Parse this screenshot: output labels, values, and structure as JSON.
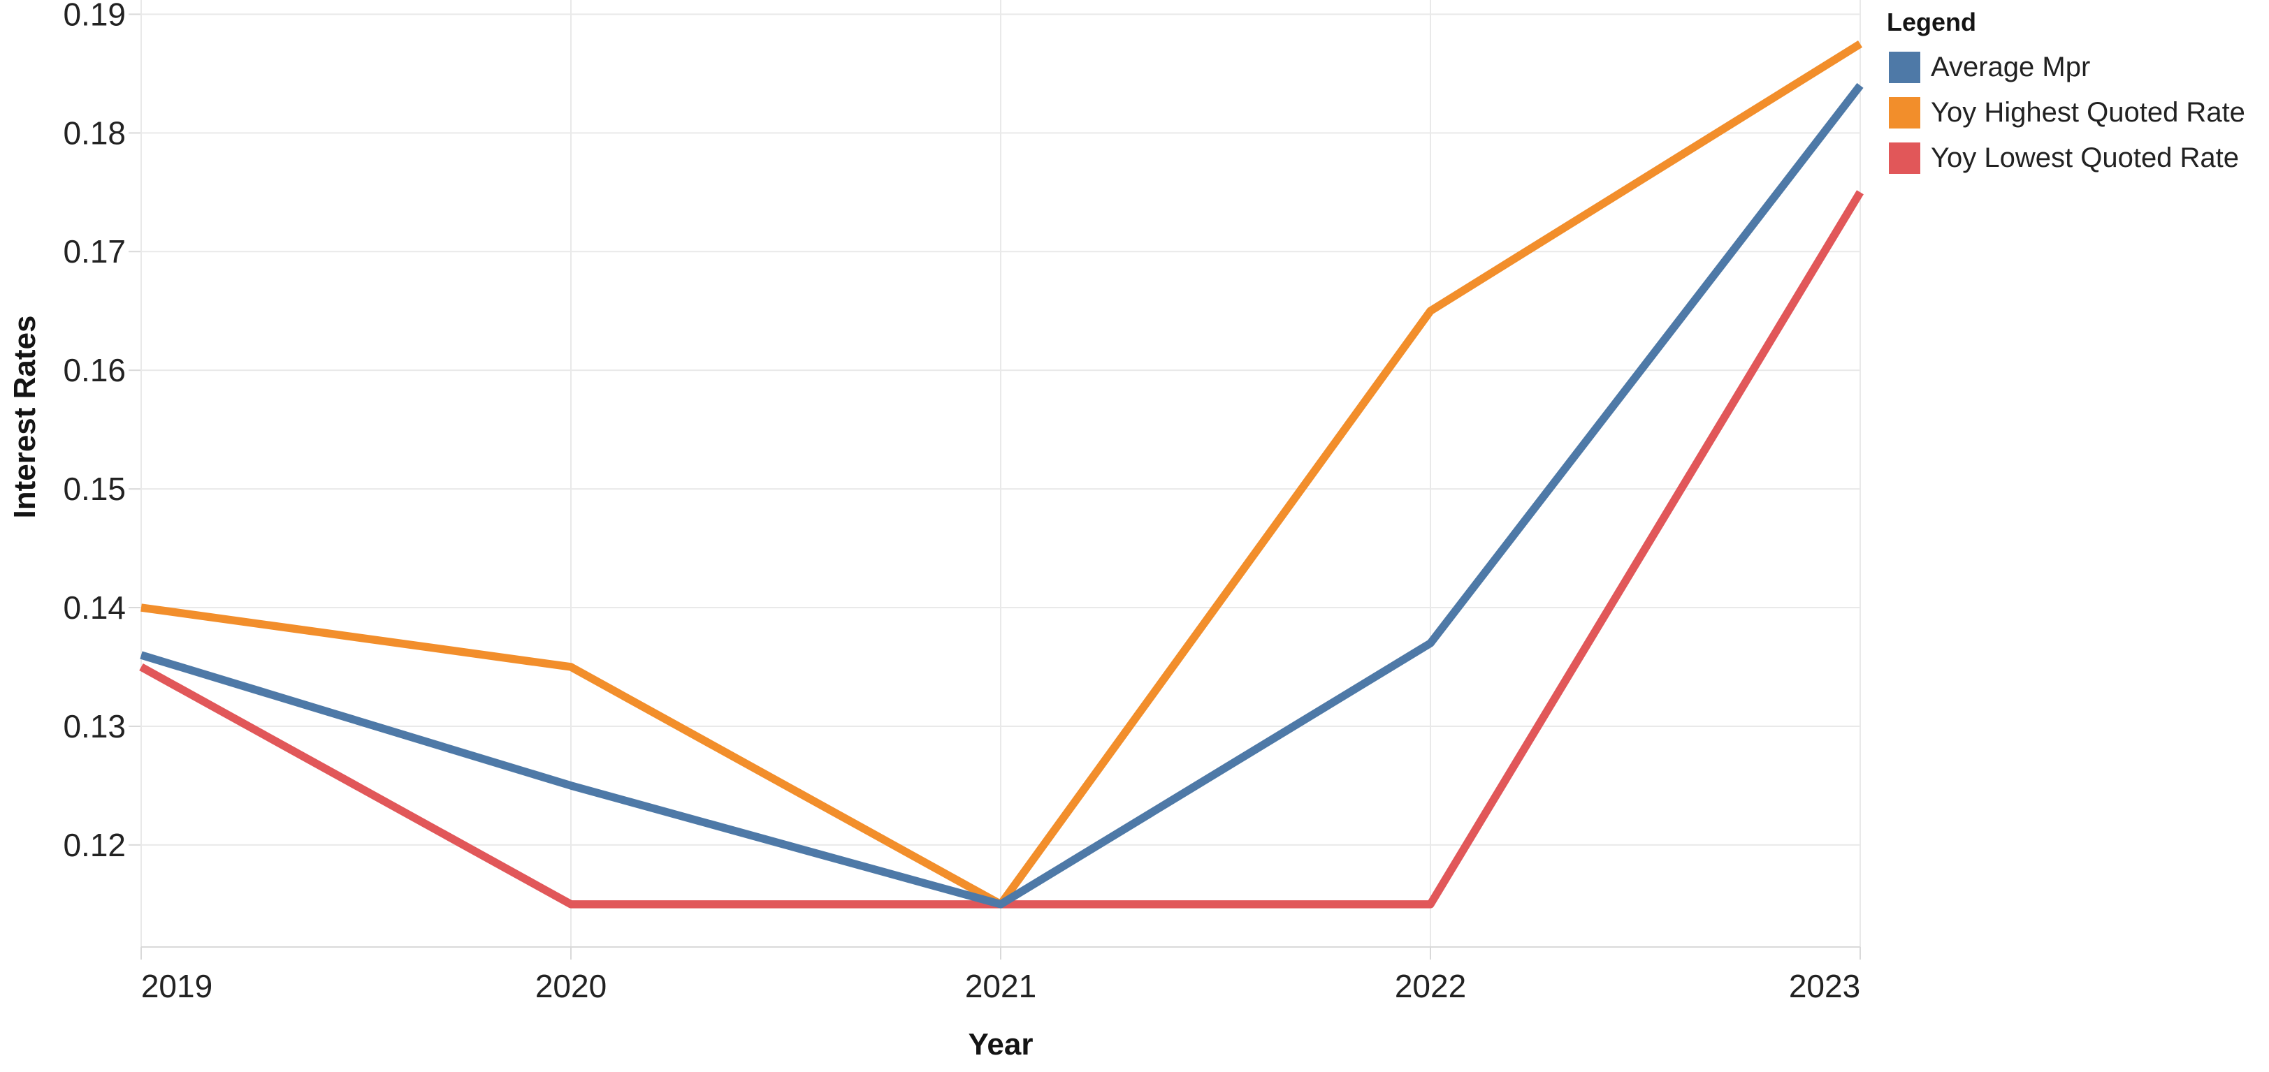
{
  "chart_data": {
    "type": "line",
    "xlabel": "Year",
    "ylabel": "Interest Rates",
    "legend_title": "Legend",
    "legend_position": "top-right",
    "grid": true,
    "categories": [
      "2019",
      "2020",
      "2021",
      "2022",
      "2023"
    ],
    "ytick_labels": [
      "0.12",
      "0.13",
      "0.14",
      "0.15",
      "0.16",
      "0.17",
      "0.18",
      "0.19"
    ],
    "ytick_values": [
      0.12,
      0.13,
      0.14,
      0.15,
      0.16,
      0.17,
      0.18,
      0.19
    ],
    "ylim": [
      0.1114,
      0.1912
    ],
    "series": [
      {
        "name": "Average Mpr",
        "color": "#4e79a7",
        "values": [
          0.136,
          0.125,
          0.115,
          0.137,
          0.184
        ]
      },
      {
        "name": "Yoy Highest Quoted Rate",
        "color": "#f28e2b",
        "values": [
          0.14,
          0.135,
          0.115,
          0.165,
          0.1875
        ]
      },
      {
        "name": "Yoy Lowest Quoted Rate",
        "color": "#e15759",
        "values": [
          0.135,
          0.115,
          0.115,
          0.115,
          0.175
        ]
      }
    ]
  },
  "colors": {
    "background": "#ffffff",
    "grid": "#e9e9e9",
    "axis_line": "#d9d9d9",
    "tick_mark": "#d9d9d9",
    "tick_text": "#222222",
    "title_text": "#141414"
  }
}
